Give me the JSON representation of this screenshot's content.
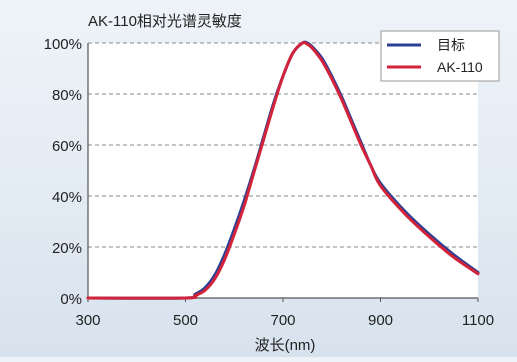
{
  "chart_data": {
    "type": "line",
    "title": "AK-110相对光谱灵敏度",
    "xlabel": "波长(nm)",
    "ylabel": "",
    "xlim": [
      300,
      1100
    ],
    "ylim": [
      0,
      100
    ],
    "x_ticks": [
      300,
      500,
      700,
      900,
      1100
    ],
    "y_ticks": [
      0,
      20,
      40,
      60,
      80,
      100
    ],
    "x_tick_labels": [
      "300",
      "500",
      "700",
      "900",
      "1100"
    ],
    "y_tick_labels": [
      "0%",
      "20%",
      "40%",
      "60%",
      "80%",
      "100%"
    ],
    "grid": "horizontal-dashed",
    "legend_position": "top-right",
    "series": [
      {
        "name": "目标",
        "color": "#2b3f93",
        "x": [
          300,
          500,
          520,
          540,
          560,
          580,
          600,
          620,
          640,
          660,
          680,
          700,
          720,
          740,
          750,
          760,
          780,
          800,
          820,
          840,
          860,
          880,
          900,
          950,
          1000,
          1050,
          1100
        ],
        "y": [
          0,
          0,
          1.5,
          4,
          9,
          17,
          27,
          38,
          50,
          63,
          76,
          87,
          96,
          100,
          100,
          98.5,
          94,
          87,
          79,
          70,
          61,
          52,
          45,
          34,
          25,
          17,
          10
        ]
      },
      {
        "name": "AK-110",
        "color": "#d2233a",
        "x": [
          300,
          500,
          520,
          540,
          560,
          580,
          600,
          620,
          640,
          660,
          680,
          700,
          720,
          740,
          750,
          760,
          780,
          800,
          820,
          840,
          860,
          880,
          900,
          950,
          1000,
          1050,
          1100
        ],
        "y": [
          0,
          0,
          1,
          3,
          7.5,
          15,
          25,
          36,
          49,
          62,
          75,
          87,
          96,
          100,
          99.5,
          98,
          93,
          86,
          78,
          69,
          60,
          52,
          44,
          33,
          24,
          16,
          9.5
        ]
      }
    ]
  }
}
